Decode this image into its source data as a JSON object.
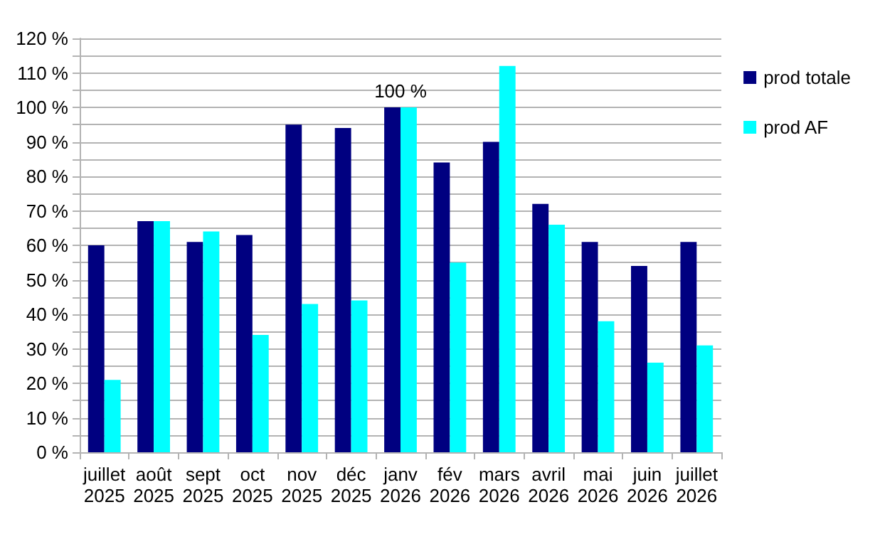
{
  "chart_data": {
    "type": "bar",
    "categories": [
      "juillet\n2025",
      "août\n2025",
      "sept\n2025",
      "oct\n2025",
      "nov\n2025",
      "déc\n2025",
      "janv\n2026",
      "fév\n2026",
      "mars\n2026",
      "avril\n2026",
      "mai\n2026",
      "juin\n2026",
      "juillet\n2026"
    ],
    "series": [
      {
        "name": "prod totale",
        "color": "#000080",
        "values": [
          60,
          67,
          61,
          63,
          95,
          94,
          100,
          84,
          90,
          72,
          61,
          54,
          61
        ]
      },
      {
        "name": "prod AF",
        "color": "#00ffff",
        "values": [
          21,
          67,
          64,
          34,
          43,
          44,
          100,
          55,
          112,
          66,
          38,
          26,
          31
        ]
      }
    ],
    "ylim": [
      0,
      120
    ],
    "yticks": [
      {
        "value": 0,
        "label": "0 %"
      },
      {
        "value": 5,
        "label": null
      },
      {
        "value": 10,
        "label": "10 %"
      },
      {
        "value": 15,
        "label": null
      },
      {
        "value": 20,
        "label": "20 %"
      },
      {
        "value": 25,
        "label": null
      },
      {
        "value": 30,
        "label": "30 %"
      },
      {
        "value": 35,
        "label": null
      },
      {
        "value": 40,
        "label": "40 %"
      },
      {
        "value": 45,
        "label": null
      },
      {
        "value": 50,
        "label": "50 %"
      },
      {
        "value": 55,
        "label": null
      },
      {
        "value": 60,
        "label": "60 %"
      },
      {
        "value": 65,
        "label": null
      },
      {
        "value": 70,
        "label": "70 %"
      },
      {
        "value": 75,
        "label": null
      },
      {
        "value": 80,
        "label": "80 %"
      },
      {
        "value": 85,
        "label": null
      },
      {
        "value": 90,
        "label": "90 %"
      },
      {
        "value": 95,
        "label": null
      },
      {
        "value": 100,
        "label": "100 %"
      },
      {
        "value": 105,
        "label": null
      },
      {
        "value": 110,
        "label": "110 %"
      },
      {
        "value": 115,
        "label": null
      },
      {
        "value": 120,
        "label": "120 %"
      }
    ],
    "annotations": [
      {
        "text": "100 %",
        "x": "janv\n2026",
        "y": 100
      }
    ],
    "grid": "y",
    "legend": "top right"
  }
}
